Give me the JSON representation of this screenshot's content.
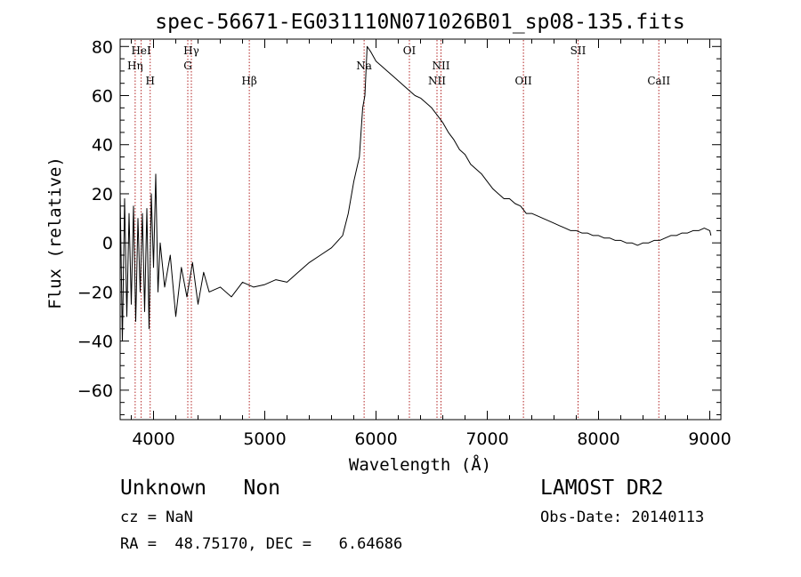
{
  "chart_data": {
    "type": "line",
    "title": "spec-56671-EG031110N071026B01_sp08-135.fits",
    "xlabel": "Wavelength (Å)",
    "ylabel": "Flux (relative)",
    "xlim": [
      3700,
      9100
    ],
    "ylim": [
      -72,
      83
    ],
    "xticks": [
      4000,
      5000,
      6000,
      7000,
      8000,
      9000
    ],
    "yticks": [
      -60,
      -40,
      -20,
      0,
      20,
      40,
      60,
      80
    ],
    "series": [
      {
        "points": [
          [
            3700,
            20
          ],
          [
            3720,
            -40
          ],
          [
            3740,
            18
          ],
          [
            3760,
            -30
          ],
          [
            3780,
            12
          ],
          [
            3800,
            -25
          ],
          [
            3820,
            15
          ],
          [
            3840,
            -32
          ],
          [
            3860,
            10
          ],
          [
            3880,
            -20
          ],
          [
            3900,
            12
          ],
          [
            3920,
            -28
          ],
          [
            3940,
            14
          ],
          [
            3960,
            -35
          ],
          [
            3980,
            20
          ],
          [
            4000,
            -10
          ],
          [
            4020,
            28
          ],
          [
            4040,
            -20
          ],
          [
            4060,
            0
          ],
          [
            4100,
            -18
          ],
          [
            4150,
            -5
          ],
          [
            4200,
            -30
          ],
          [
            4250,
            -10
          ],
          [
            4300,
            -22
          ],
          [
            4350,
            -8
          ],
          [
            4400,
            -25
          ],
          [
            4450,
            -12
          ],
          [
            4500,
            -20
          ],
          [
            4600,
            -18
          ],
          [
            4700,
            -22
          ],
          [
            4800,
            -16
          ],
          [
            4900,
            -18
          ],
          [
            5000,
            -17
          ],
          [
            5100,
            -15
          ],
          [
            5200,
            -16
          ],
          [
            5300,
            -12
          ],
          [
            5400,
            -8
          ],
          [
            5500,
            -5
          ],
          [
            5600,
            -2
          ],
          [
            5700,
            3
          ],
          [
            5750,
            12
          ],
          [
            5800,
            25
          ],
          [
            5850,
            35
          ],
          [
            5880,
            55
          ],
          [
            5900,
            60
          ],
          [
            5920,
            80
          ],
          [
            5950,
            78
          ],
          [
            6000,
            74
          ],
          [
            6050,
            72
          ],
          [
            6100,
            70
          ],
          [
            6150,
            68
          ],
          [
            6200,
            66
          ],
          [
            6250,
            64
          ],
          [
            6300,
            62
          ],
          [
            6350,
            60
          ],
          [
            6400,
            59
          ],
          [
            6450,
            57
          ],
          [
            6500,
            55
          ],
          [
            6550,
            52
          ],
          [
            6600,
            49
          ],
          [
            6650,
            45
          ],
          [
            6700,
            42
          ],
          [
            6750,
            38
          ],
          [
            6800,
            36
          ],
          [
            6850,
            32
          ],
          [
            6900,
            30
          ],
          [
            6950,
            28
          ],
          [
            7000,
            25
          ],
          [
            7050,
            22
          ],
          [
            7100,
            20
          ],
          [
            7150,
            18
          ],
          [
            7200,
            18
          ],
          [
            7250,
            16
          ],
          [
            7300,
            15
          ],
          [
            7350,
            12
          ],
          [
            7400,
            12
          ],
          [
            7450,
            11
          ],
          [
            7500,
            10
          ],
          [
            7550,
            9
          ],
          [
            7600,
            8
          ],
          [
            7650,
            7
          ],
          [
            7700,
            6
          ],
          [
            7750,
            5
          ],
          [
            7800,
            5
          ],
          [
            7850,
            4
          ],
          [
            7900,
            4
          ],
          [
            7950,
            3
          ],
          [
            8000,
            3
          ],
          [
            8050,
            2
          ],
          [
            8100,
            2
          ],
          [
            8150,
            1
          ],
          [
            8200,
            1
          ],
          [
            8250,
            0
          ],
          [
            8300,
            0
          ],
          [
            8350,
            -1
          ],
          [
            8400,
            0
          ],
          [
            8450,
            0
          ],
          [
            8500,
            1
          ],
          [
            8550,
            1
          ],
          [
            8600,
            2
          ],
          [
            8650,
            3
          ],
          [
            8700,
            3
          ],
          [
            8750,
            4
          ],
          [
            8800,
            4
          ],
          [
            8850,
            5
          ],
          [
            8900,
            5
          ],
          [
            8950,
            6
          ],
          [
            9000,
            5
          ],
          [
            9010,
            3
          ]
        ]
      }
    ],
    "spectral_lines": [
      {
        "label": "Hη",
        "wavelength": 3835,
        "row": 2
      },
      {
        "label": "HeI",
        "wavelength": 3889,
        "row": 1
      },
      {
        "label": "H",
        "wavelength": 3970,
        "row": 3
      },
      {
        "label": "Hγ",
        "wavelength": 4340,
        "row": 1
      },
      {
        "label": "G",
        "wavelength": 4308,
        "row": 2
      },
      {
        "label": "Hβ",
        "wavelength": 4861,
        "row": 3
      },
      {
        "label": "Na",
        "wavelength": 5893,
        "row": 2
      },
      {
        "label": "OI",
        "wavelength": 6300,
        "row": 1
      },
      {
        "label": "NII",
        "wavelength": 6584,
        "row": 2
      },
      {
        "label": "NII",
        "wavelength": 6548,
        "row": 3
      },
      {
        "label": "OII",
        "wavelength": 7325,
        "row": 3
      },
      {
        "label": "SII",
        "wavelength": 7816,
        "row": 1
      },
      {
        "label": "CaII",
        "wavelength": 8542,
        "row": 3
      }
    ]
  },
  "info": {
    "class": "Unknown",
    "subclass": "Non",
    "survey": "LAMOST DR2",
    "cz": "cz = NaN",
    "obs_date": "Obs-Date: 20140113",
    "radec": "RA =  48.75170, DEC =   6.64686"
  }
}
